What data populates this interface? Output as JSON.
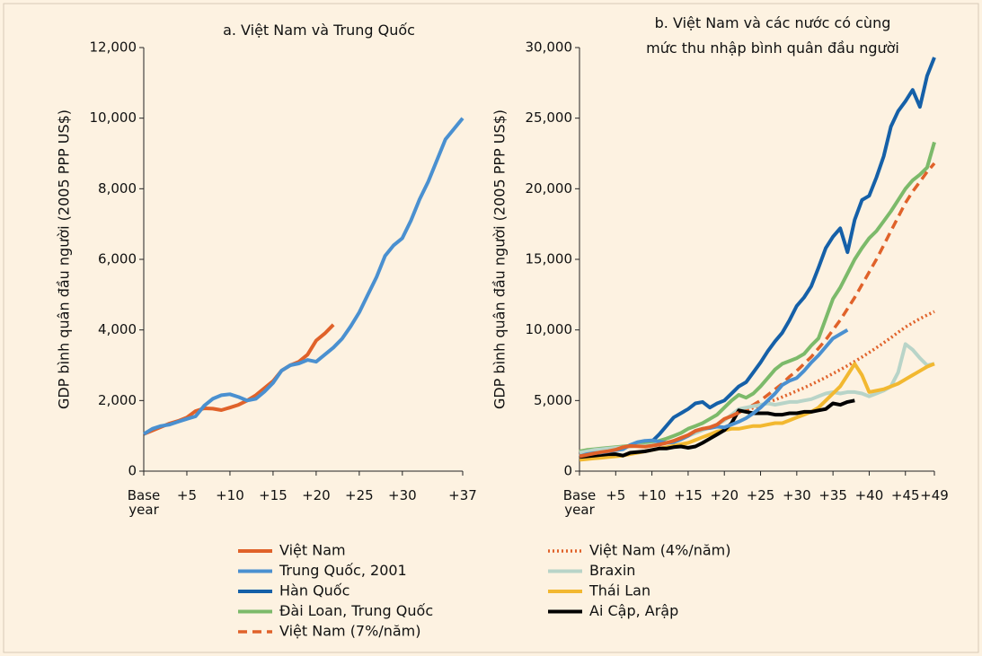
{
  "chart_data": [
    {
      "type": "line",
      "title": "a. Việt Nam và Trung Quốc",
      "y_label": "GDP bình quân đầu người (2005 PPP US$)",
      "x": [
        0,
        1,
        2,
        3,
        4,
        5,
        6,
        7,
        8,
        9,
        10,
        11,
        12,
        13,
        14,
        15,
        16,
        17,
        18,
        19,
        20,
        21,
        22,
        23,
        24,
        25,
        26,
        27,
        28,
        29,
        30,
        31,
        32,
        33,
        34,
        35,
        36,
        37
      ],
      "xlim": [
        0,
        37
      ],
      "xticks": [
        {
          "value": 0,
          "label": "Base year"
        },
        {
          "value": 5,
          "label": "+5"
        },
        {
          "value": 10,
          "label": "+10"
        },
        {
          "value": 15,
          "label": "+15"
        },
        {
          "value": 20,
          "label": "+20"
        },
        {
          "value": 25,
          "label": "+25"
        },
        {
          "value": 30,
          "label": "+30"
        },
        {
          "value": 37,
          "label": "+37"
        }
      ],
      "ylim": [
        0,
        12000
      ],
      "yticks": [
        0,
        {
          "value": 2000,
          "label": "2,000"
        },
        {
          "value": 4000,
          "label": "4,000"
        },
        {
          "value": 6000,
          "label": "6,000"
        },
        {
          "value": 8000,
          "label": "8,000"
        },
        {
          "value": 10000,
          "label": "10,000"
        },
        {
          "value": 12000,
          "label": "12,000"
        }
      ],
      "series": [
        {
          "name": "Việt Nam",
          "color": "#e0622a",
          "style": "solid",
          "values": [
            1050,
            1150,
            1250,
            1350,
            1420,
            1520,
            1700,
            1780,
            1770,
            1730,
            1800,
            1880,
            2000,
            2150,
            2350,
            2550,
            2850,
            3000,
            3100,
            3300,
            3700,
            3900,
            4150,
            null,
            null,
            null,
            null,
            null,
            null,
            null,
            null,
            null,
            null,
            null,
            null,
            null,
            null,
            null
          ]
        },
        {
          "name": "Trung Quốc, 2001",
          "color": "#4a90d0",
          "style": "solid",
          "values": [
            1050,
            1200,
            1280,
            1320,
            1400,
            1480,
            1550,
            1850,
            2050,
            2150,
            2180,
            2100,
            2000,
            2050,
            2250,
            2500,
            2850,
            3000,
            3050,
            3150,
            3100,
            3300,
            3500,
            3750,
            4100,
            4500,
            5000,
            5500,
            6100,
            6400,
            6600,
            7100,
            7700,
            8200,
            8800,
            9400,
            9700,
            10000
          ]
        }
      ]
    },
    {
      "type": "line",
      "title": "b. Việt Nam và các nước có cùng mức thu nhập bình quân đầu người",
      "y_label": "GDP bình quân đầu người (2005 PPP US$)",
      "x": [
        0,
        1,
        2,
        3,
        4,
        5,
        6,
        7,
        8,
        9,
        10,
        11,
        12,
        13,
        14,
        15,
        16,
        17,
        18,
        19,
        20,
        21,
        22,
        23,
        24,
        25,
        26,
        27,
        28,
        29,
        30,
        31,
        32,
        33,
        34,
        35,
        36,
        37,
        38,
        39,
        40,
        41,
        42,
        43,
        44,
        45,
        46,
        47,
        48,
        49
      ],
      "xlim": [
        0,
        49
      ],
      "xticks": [
        {
          "value": 0,
          "label": "Base year"
        },
        {
          "value": 5,
          "label": "+5"
        },
        {
          "value": 10,
          "label": "+10"
        },
        {
          "value": 15,
          "label": "+15"
        },
        {
          "value": 20,
          "label": "+20"
        },
        {
          "value": 25,
          "label": "+25"
        },
        {
          "value": 30,
          "label": "+30"
        },
        {
          "value": 35,
          "label": "+35"
        },
        {
          "value": 40,
          "label": "+40"
        },
        {
          "value": 45,
          "label": "+45"
        },
        {
          "value": 49,
          "label": "+49"
        }
      ],
      "ylim": [
        0,
        30000
      ],
      "yticks": [
        0,
        {
          "value": 5000,
          "label": "5,000"
        },
        {
          "value": 10000,
          "label": "10,000"
        },
        {
          "value": 15000,
          "label": "15,000"
        },
        {
          "value": 20000,
          "label": "20,000"
        },
        {
          "value": 25000,
          "label": "25,000"
        },
        {
          "value": 30000,
          "label": "30,000"
        }
      ],
      "series": [
        {
          "name": "Hàn Quốc",
          "color": "#1560a8",
          "style": "solid",
          "values": [
            1100,
            1200,
            1300,
            1400,
            1500,
            1600,
            1700,
            1800,
            1900,
            2000,
            2100,
            2600,
            3200,
            3800,
            4100,
            4400,
            4800,
            4900,
            4500,
            4800,
            5000,
            5500,
            6000,
            6300,
            7000,
            7700,
            8500,
            9200,
            9800,
            10700,
            11700,
            12300,
            13100,
            14400,
            15800,
            16600,
            17200,
            15500,
            17800,
            19200,
            19500,
            20800,
            22300,
            24400,
            25500,
            26200,
            27000,
            25800,
            28000,
            29300
          ]
        },
        {
          "name": "Đài Loan, Trung Quốc",
          "color": "#7cba6a",
          "style": "solid",
          "values": [
            1400,
            1500,
            1550,
            1600,
            1650,
            1700,
            1750,
            1800,
            1850,
            1900,
            2000,
            2150,
            2300,
            2500,
            2700,
            3000,
            3200,
            3400,
            3700,
            4000,
            4500,
            5000,
            5400,
            5200,
            5500,
            6000,
            6600,
            7200,
            7600,
            7800,
            8000,
            8300,
            8900,
            9400,
            10800,
            12200,
            13000,
            14000,
            15000,
            15800,
            16500,
            17000,
            17700,
            18400,
            19200,
            20000,
            20600,
            21000,
            21500,
            23300
          ]
        },
        {
          "name": "Việt Nam (7%/năm)",
          "color": "#e0622a",
          "style": "dashed",
          "values": [
            null,
            null,
            null,
            null,
            null,
            null,
            null,
            null,
            null,
            null,
            null,
            null,
            null,
            null,
            null,
            null,
            null,
            null,
            null,
            null,
            null,
            null,
            4150,
            4400,
            4700,
            5000,
            5400,
            5800,
            6200,
            6700,
            7100,
            7600,
            8100,
            8700,
            9300,
            10000,
            10700,
            11500,
            12300,
            13200,
            14100,
            15000,
            16000,
            17000,
            18000,
            19000,
            19800,
            20500,
            21200,
            21800
          ]
        },
        {
          "name": "Việt Nam (4%/năm)",
          "color": "#e0622a",
          "style": "dotted",
          "values": [
            null,
            null,
            null,
            null,
            null,
            null,
            null,
            null,
            null,
            null,
            null,
            null,
            null,
            null,
            null,
            null,
            null,
            null,
            null,
            null,
            null,
            null,
            4150,
            4320,
            4490,
            4670,
            4850,
            5050,
            5250,
            5460,
            5680,
            5900,
            6140,
            6390,
            6640,
            6910,
            7180,
            7470,
            7770,
            8080,
            8400,
            8740,
            9090,
            9450,
            9830,
            10200,
            10500,
            10800,
            11050,
            11300
          ]
        },
        {
          "name": "Braxin",
          "color": "#b8d4c8",
          "style": "solid",
          "values": [
            1300,
            1400,
            1500,
            1550,
            1600,
            1650,
            1700,
            1750,
            1800,
            1800,
            1850,
            1900,
            2000,
            2100,
            2300,
            2500,
            2700,
            2900,
            3100,
            3300,
            3600,
            4000,
            4400,
            4500,
            4600,
            4700,
            4800,
            4700,
            4800,
            4900,
            4900,
            5000,
            5100,
            5300,
            5500,
            5600,
            5500,
            5600,
            5600,
            5500,
            5300,
            5500,
            5700,
            6000,
            7000,
            9000,
            8600,
            8000,
            7500,
            7600
          ]
        },
        {
          "name": "Thái Lan",
          "color": "#f2b830",
          "style": "solid",
          "values": [
            800,
            850,
            900,
            950,
            1000,
            1050,
            1100,
            1200,
            1300,
            1400,
            1500,
            1600,
            1700,
            1800,
            1900,
            2000,
            2200,
            2400,
            2600,
            2800,
            2900,
            3000,
            3000,
            3100,
            3200,
            3200,
            3300,
            3400,
            3400,
            3600,
            3800,
            4000,
            4200,
            4500,
            5000,
            5500,
            6000,
            6800,
            7600,
            6800,
            5600,
            5700,
            5800,
            6000,
            6200,
            6500,
            6800,
            7100,
            7400,
            7600
          ]
        },
        {
          "name": "Ai Cập, Arập",
          "color": "#000000",
          "style": "solid",
          "values": [
            1000,
            1050,
            1100,
            1150,
            1200,
            1200,
            1100,
            1300,
            1350,
            1400,
            1500,
            1600,
            1600,
            1700,
            1750,
            1650,
            1750,
            2000,
            2300,
            2600,
            2900,
            3400,
            4300,
            4200,
            4100,
            4100,
            4100,
            4000,
            4000,
            4100,
            4100,
            4200,
            4200,
            4300,
            4400,
            4800,
            4700,
            4900,
            5000,
            null,
            null,
            null,
            null,
            null,
            null,
            null,
            null,
            null,
            null,
            null
          ]
        },
        {
          "color": "#4a90d0",
          "style": "solid",
          "values": [
            1050,
            1200,
            1280,
            1320,
            1400,
            1480,
            1550,
            1850,
            2050,
            2150,
            2180,
            2100,
            2000,
            2050,
            2250,
            2500,
            2850,
            3000,
            3050,
            3150,
            3100,
            3300,
            3500,
            3750,
            4100,
            4500,
            5000,
            5500,
            6100,
            6400,
            6600,
            7100,
            7700,
            8200,
            8800,
            9400,
            9700,
            10000,
            null,
            null,
            null,
            null,
            null,
            null,
            null,
            null,
            null,
            null,
            null,
            null
          ]
        },
        {
          "color": "#e0622a",
          "style": "solid",
          "values": [
            1050,
            1150,
            1250,
            1350,
            1420,
            1520,
            1700,
            1780,
            1770,
            1730,
            1800,
            1880,
            2000,
            2150,
            2350,
            2550,
            2850,
            3000,
            3100,
            3300,
            3700,
            3900,
            4150,
            null,
            null,
            null,
            null,
            null,
            null,
            null,
            null,
            null,
            null,
            null,
            null,
            null,
            null,
            null,
            null,
            null,
            null,
            null,
            null,
            null,
            null,
            null,
            null,
            null,
            null,
            null
          ]
        }
      ]
    }
  ]
}
